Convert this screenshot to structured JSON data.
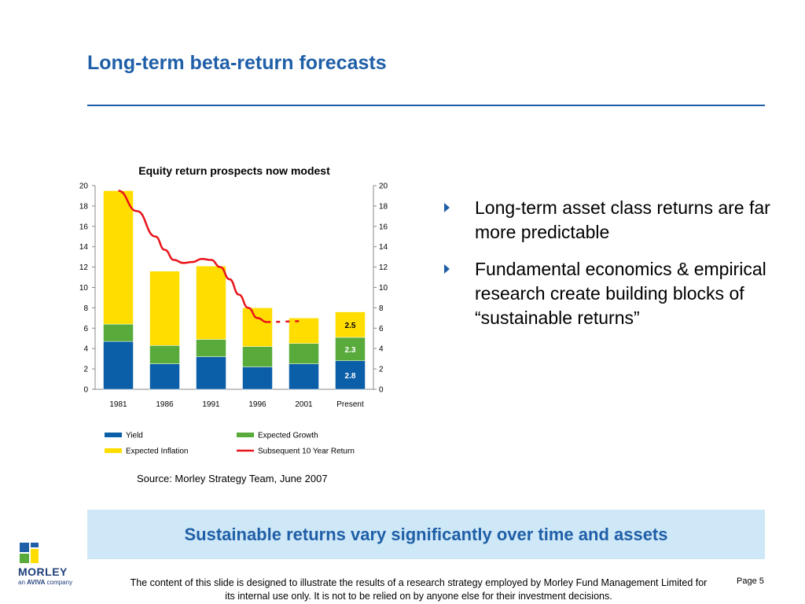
{
  "title": "Long-term beta-return forecasts",
  "source": "Source: Morley Strategy Team, June 2007",
  "bullets": [
    "Long-term asset class returns are far more predictable",
    "Fundamental economics & empirical research create building blocks of “sustainable returns”"
  ],
  "banner": "Sustainable returns vary significantly over time and assets",
  "footer": "The content of this slide is designed to illustrate the results of a research strategy employed by Morley Fund Management Limited for its internal use only.  It is not to be relied on by anyone else for their investment decisions.",
  "page_label": "Page 5",
  "logo": {
    "name": "MORLEY",
    "tagline_prefix": "an ",
    "tagline_brand": "AVIVA",
    "tagline_suffix": " company"
  },
  "colors": {
    "title": "#1f5fa8",
    "yield": "#0b5ea8",
    "growth": "#58ab3b",
    "inflation": "#ffdd00",
    "return_line": "#e8141b",
    "banner_bg": "#cfe8f7"
  },
  "chart_data": {
    "type": "bar",
    "stacked": true,
    "title": "Equity return prospects now modest",
    "categories": [
      "1981",
      "1986",
      "1991",
      "1996",
      "2001",
      "Present"
    ],
    "series": [
      {
        "name": "Yield",
        "values": [
          4.7,
          2.5,
          3.2,
          2.2,
          2.5,
          2.8
        ]
      },
      {
        "name": "Expected Growth",
        "values": [
          1.7,
          1.8,
          1.7,
          2.0,
          2.0,
          2.3
        ]
      },
      {
        "name": "Expected Inflation",
        "values": [
          13.1,
          7.3,
          7.2,
          3.8,
          2.5,
          2.5
        ]
      }
    ],
    "line_series": {
      "name": "Subsequent 10 Year Return",
      "x": [
        1981,
        1983,
        1985,
        1986,
        1987,
        1988,
        1989,
        1990,
        1991,
        1992,
        1993,
        1994,
        1995,
        1996,
        1997
      ],
      "values": [
        19.5,
        17.5,
        15.0,
        13.7,
        12.7,
        12.4,
        12.5,
        12.8,
        12.7,
        12.0,
        10.8,
        9.3,
        8.0,
        7.0,
        6.6
      ],
      "projected_x": [
        1997,
        2001
      ],
      "projected_values": [
        6.6,
        6.7
      ]
    },
    "data_labels": {
      "Present": [
        "2.8",
        "2.3",
        "2.5"
      ]
    },
    "ylim": [
      0,
      20
    ],
    "yticks": [
      0,
      2,
      4,
      6,
      8,
      10,
      12,
      14,
      16,
      18,
      20
    ],
    "secondary_ylim": [
      0,
      20
    ],
    "xlabel": "",
    "ylabel": "",
    "grid": false,
    "legend": {
      "position": "bottom",
      "entries": [
        "Yield",
        "Expected Growth",
        "Expected Inflation",
        "Subsequent 10 Year Return"
      ]
    }
  }
}
